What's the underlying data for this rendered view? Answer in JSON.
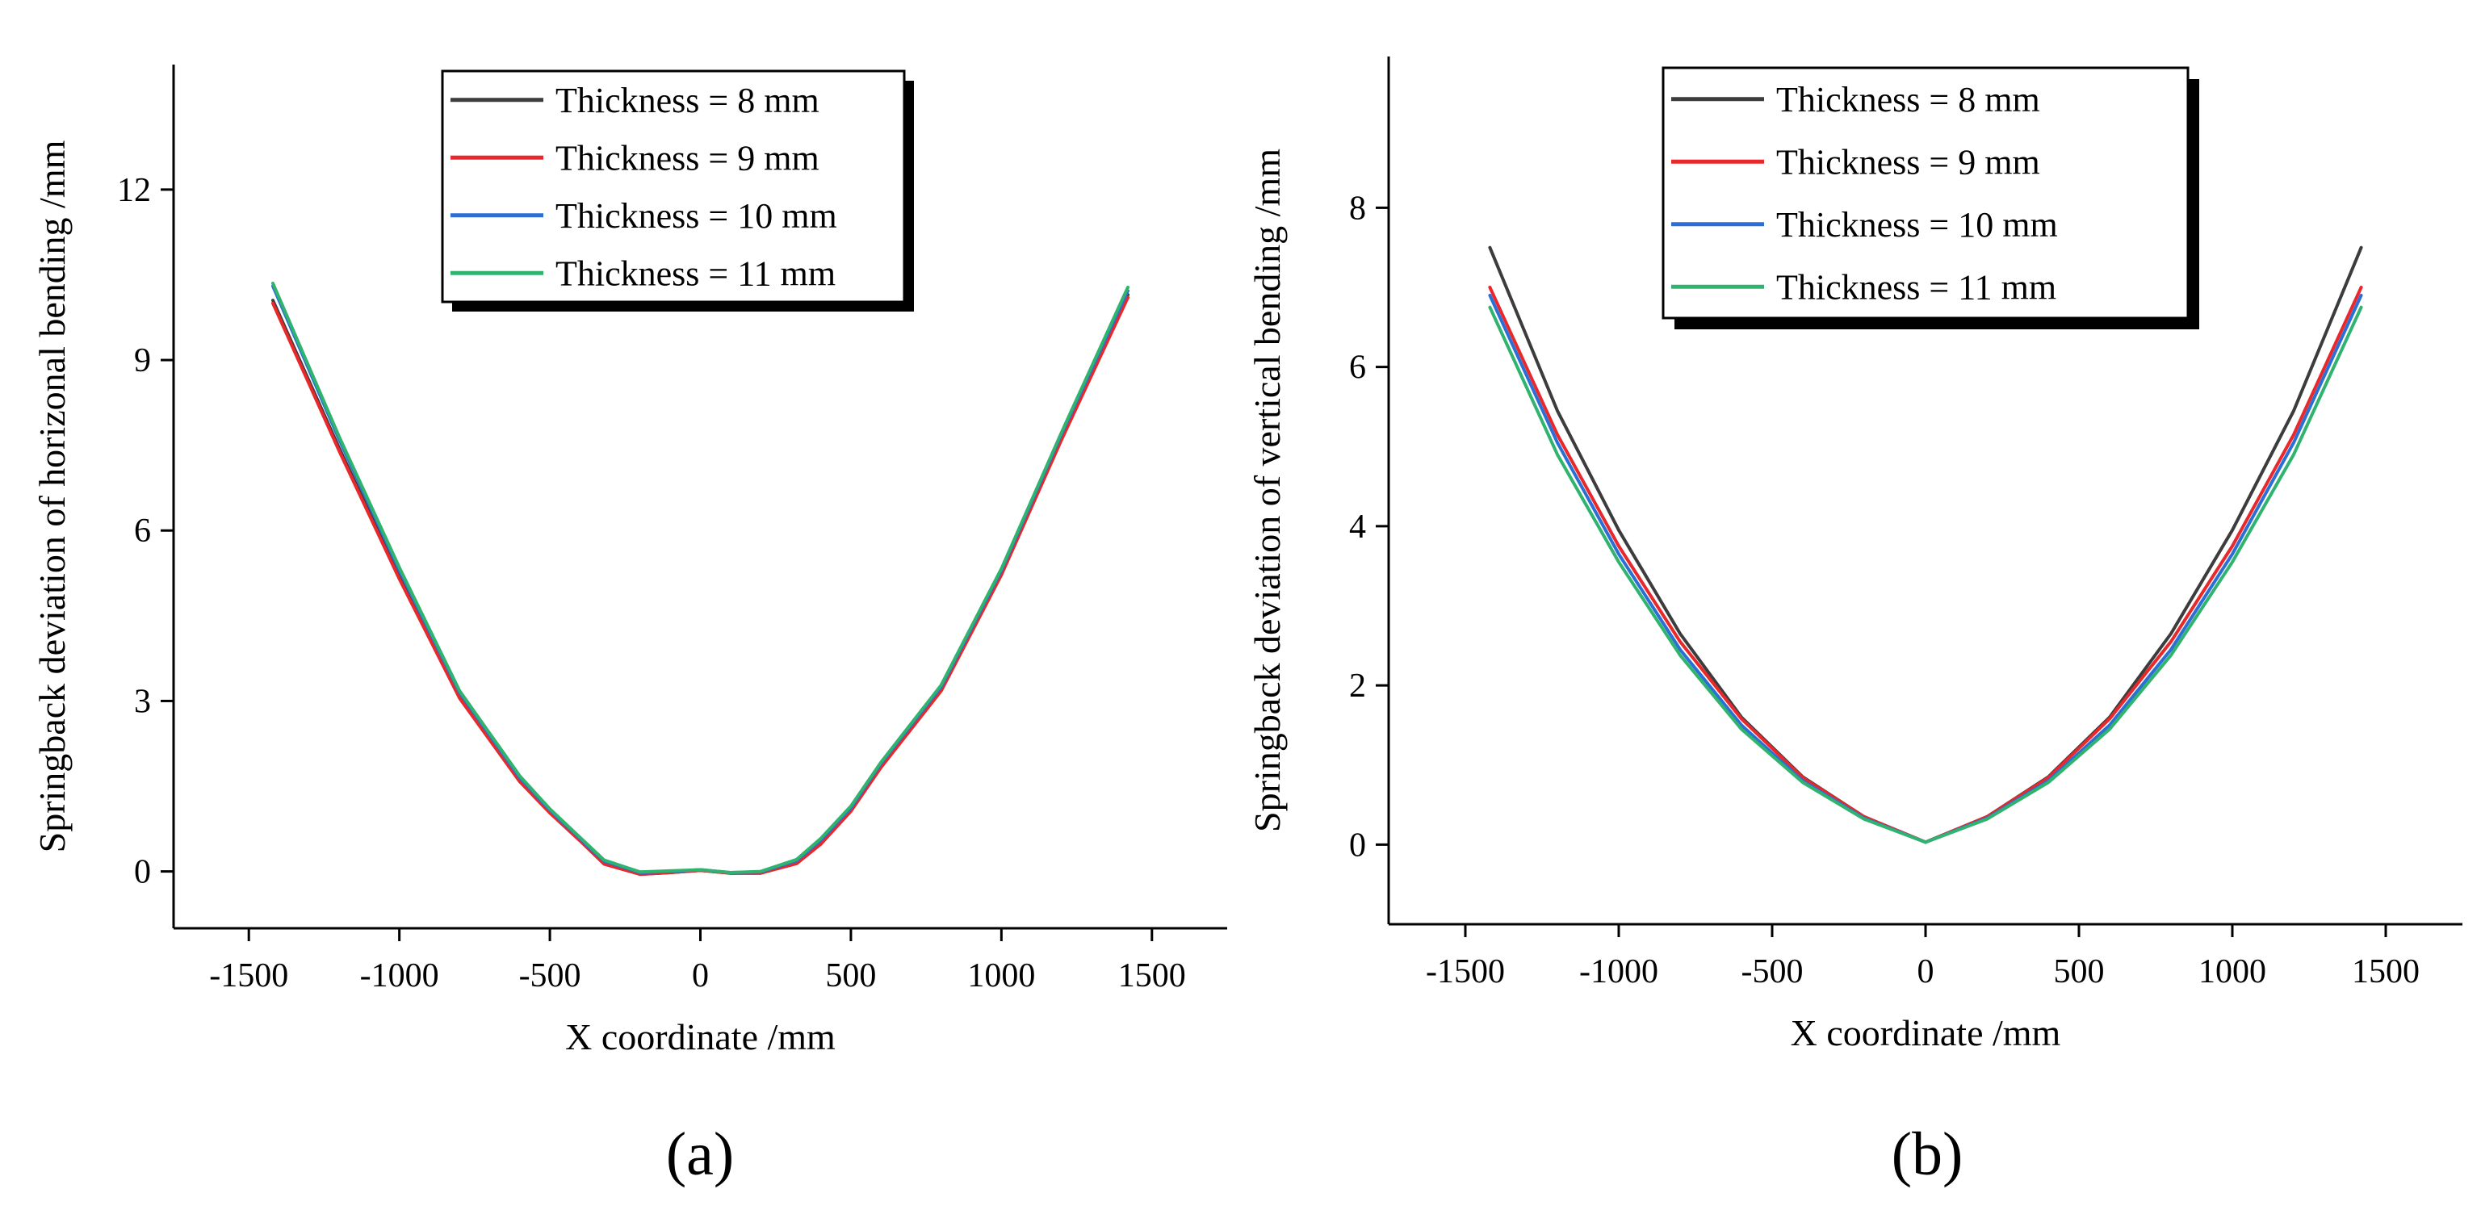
{
  "chart_data": [
    {
      "type": "line",
      "panel_label": "(a)",
      "title": "",
      "xlabel": "X coordinate /mm",
      "ylabel": "Springback deviation of horizonal bending /mm",
      "xlim": [
        -1750,
        1750
      ],
      "ylim": [
        -1,
        14.2
      ],
      "xticks": [
        -1500,
        -1000,
        -500,
        0,
        500,
        1000,
        1500
      ],
      "yticks": [
        0,
        3,
        6,
        9,
        12
      ],
      "grid": false,
      "legend": {
        "placement": "top-center"
      },
      "x": [
        -1420,
        -1200,
        -1000,
        -800,
        -600,
        -500,
        -400,
        -320,
        -200,
        -100,
        0,
        100,
        200,
        320,
        400,
        500,
        600,
        800,
        1000,
        1200,
        1420
      ],
      "series": [
        {
          "name": "Thickness = 8 mm",
          "color": "#3c3c3c",
          "values": [
            10.05,
            7.45,
            5.2,
            3.1,
            1.6,
            1.05,
            0.55,
            0.14,
            -0.05,
            -0.02,
            0.02,
            -0.03,
            -0.03,
            0.15,
            0.5,
            1.08,
            1.85,
            3.2,
            5.25,
            7.65,
            10.15
          ]
        },
        {
          "name": "Thickness = 9 mm",
          "color": "#e8282b",
          "values": [
            10.0,
            7.4,
            5.15,
            3.05,
            1.58,
            1.03,
            0.54,
            0.13,
            -0.05,
            -0.02,
            0.02,
            -0.03,
            -0.03,
            0.14,
            0.48,
            1.06,
            1.83,
            3.18,
            5.22,
            7.6,
            10.1
          ]
        },
        {
          "name": "Thickness = 10 mm",
          "color": "#2b6fd6",
          "values": [
            10.3,
            7.6,
            5.3,
            3.15,
            1.65,
            1.08,
            0.58,
            0.18,
            -0.02,
            0.0,
            0.03,
            -0.02,
            -0.01,
            0.19,
            0.55,
            1.12,
            1.9,
            3.25,
            5.3,
            7.7,
            10.22
          ]
        },
        {
          "name": "Thickness = 11 mm",
          "color": "#2fb36f",
          "values": [
            10.35,
            7.65,
            5.35,
            3.18,
            1.68,
            1.1,
            0.6,
            0.2,
            -0.01,
            0.01,
            0.03,
            -0.02,
            0.0,
            0.21,
            0.58,
            1.15,
            1.92,
            3.28,
            5.33,
            7.73,
            10.28
          ]
        }
      ]
    },
    {
      "type": "line",
      "panel_label": "(b)",
      "title": "",
      "xlabel": "X coordinate /mm",
      "ylabel": "Springback deviation of vertical bending /mm",
      "xlim": [
        -1750,
        1750
      ],
      "ylim": [
        -1,
        9.9
      ],
      "xticks": [
        -1500,
        -1000,
        -500,
        0,
        500,
        1000,
        1500
      ],
      "yticks": [
        0,
        2,
        4,
        6,
        8
      ],
      "grid": false,
      "legend": {
        "placement": "top-left"
      },
      "x": [
        -1420,
        -1200,
        -1000,
        -800,
        -600,
        -400,
        -200,
        0,
        200,
        400,
        600,
        800,
        1000,
        1200,
        1420
      ],
      "series": [
        {
          "name": "Thickness = 8 mm",
          "color": "#3c3c3c",
          "values": [
            7.5,
            5.45,
            3.95,
            2.65,
            1.6,
            0.85,
            0.35,
            0.03,
            0.35,
            0.85,
            1.6,
            2.65,
            3.95,
            5.45,
            7.5
          ]
        },
        {
          "name": "Thickness = 9 mm",
          "color": "#e8282b",
          "values": [
            7.0,
            5.15,
            3.75,
            2.55,
            1.58,
            0.84,
            0.35,
            0.03,
            0.35,
            0.84,
            1.58,
            2.55,
            3.75,
            5.15,
            7.0
          ]
        },
        {
          "name": "Thickness = 10 mm",
          "color": "#2b6fd6",
          "values": [
            6.9,
            5.05,
            3.65,
            2.45,
            1.5,
            0.8,
            0.33,
            0.03,
            0.33,
            0.8,
            1.5,
            2.45,
            3.65,
            5.05,
            6.9
          ]
        },
        {
          "name": "Thickness = 11 mm",
          "color": "#2fb36f",
          "values": [
            6.75,
            4.9,
            3.55,
            2.38,
            1.45,
            0.78,
            0.32,
            0.03,
            0.32,
            0.78,
            1.45,
            2.38,
            3.55,
            4.9,
            6.75
          ]
        }
      ]
    }
  ]
}
